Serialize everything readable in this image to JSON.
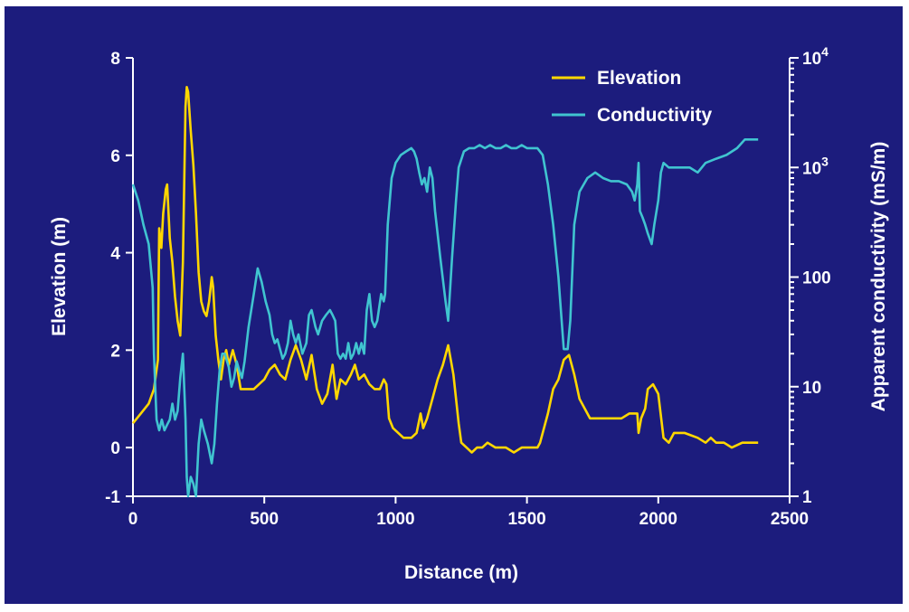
{
  "chart_data": {
    "type": "line",
    "background": "#1c1c7d",
    "xlabel": "Distance (m)",
    "ylabel_left": "Elevation (m)",
    "ylabel_right": "Apparent conductivity (mS/m)",
    "xlim": [
      0,
      2500
    ],
    "ylim_left": [
      -1,
      8
    ],
    "ylim_right": [
      1,
      10000
    ],
    "y_right_scale": "log",
    "x_ticks": [
      "0",
      "500",
      "1000",
      "1500",
      "2000",
      "2500"
    ],
    "y_left_ticks": [
      "-1",
      "0",
      "2",
      "4",
      "6",
      "8"
    ],
    "y_right_ticks": [
      {
        "base": "1",
        "exp": ""
      },
      {
        "base": "10",
        "exp": ""
      },
      {
        "base": "100",
        "exp": ""
      },
      {
        "base": "10",
        "exp": "3"
      },
      {
        "base": "10",
        "exp": "4"
      }
    ],
    "legend_position": "top-right",
    "grid": false,
    "series": [
      {
        "name": "Elevation",
        "axis": "left",
        "color": "#ffd700",
        "points": [
          [
            0,
            0.5
          ],
          [
            30,
            0.7
          ],
          [
            60,
            0.9
          ],
          [
            80,
            1.2
          ],
          [
            95,
            1.8
          ],
          [
            100,
            4.5
          ],
          [
            108,
            4.1
          ],
          [
            115,
            4.8
          ],
          [
            125,
            5.3
          ],
          [
            130,
            5.4
          ],
          [
            140,
            4.3
          ],
          [
            150,
            3.8
          ],
          [
            160,
            3.1
          ],
          [
            170,
            2.6
          ],
          [
            180,
            2.3
          ],
          [
            190,
            3.8
          ],
          [
            200,
            7.0
          ],
          [
            205,
            7.4
          ],
          [
            210,
            7.3
          ],
          [
            220,
            6.5
          ],
          [
            230,
            5.8
          ],
          [
            240,
            4.8
          ],
          [
            250,
            3.6
          ],
          [
            260,
            3.0
          ],
          [
            270,
            2.8
          ],
          [
            280,
            2.7
          ],
          [
            290,
            3.0
          ],
          [
            300,
            3.5
          ],
          [
            305,
            3.3
          ],
          [
            315,
            2.3
          ],
          [
            325,
            1.8
          ],
          [
            335,
            1.4
          ],
          [
            345,
            1.8
          ],
          [
            355,
            2.0
          ],
          [
            365,
            1.7
          ],
          [
            380,
            2.0
          ],
          [
            395,
            1.7
          ],
          [
            410,
            1.2
          ],
          [
            440,
            1.2
          ],
          [
            460,
            1.2
          ],
          [
            480,
            1.3
          ],
          [
            500,
            1.4
          ],
          [
            520,
            1.6
          ],
          [
            540,
            1.7
          ],
          [
            560,
            1.5
          ],
          [
            580,
            1.4
          ],
          [
            600,
            1.8
          ],
          [
            620,
            2.1
          ],
          [
            640,
            1.8
          ],
          [
            660,
            1.4
          ],
          [
            680,
            1.9
          ],
          [
            700,
            1.2
          ],
          [
            720,
            0.9
          ],
          [
            740,
            1.1
          ],
          [
            760,
            1.7
          ],
          [
            775,
            1.0
          ],
          [
            790,
            1.4
          ],
          [
            810,
            1.3
          ],
          [
            830,
            1.5
          ],
          [
            845,
            1.7
          ],
          [
            860,
            1.4
          ],
          [
            880,
            1.5
          ],
          [
            900,
            1.3
          ],
          [
            920,
            1.2
          ],
          [
            940,
            1.2
          ],
          [
            955,
            1.4
          ],
          [
            965,
            1.3
          ],
          [
            975,
            0.6
          ],
          [
            990,
            0.4
          ],
          [
            1010,
            0.3
          ],
          [
            1030,
            0.2
          ],
          [
            1060,
            0.2
          ],
          [
            1080,
            0.3
          ],
          [
            1095,
            0.7
          ],
          [
            1105,
            0.4
          ],
          [
            1120,
            0.6
          ],
          [
            1140,
            1.0
          ],
          [
            1160,
            1.4
          ],
          [
            1180,
            1.7
          ],
          [
            1200,
            2.1
          ],
          [
            1220,
            1.5
          ],
          [
            1240,
            0.5
          ],
          [
            1250,
            0.1
          ],
          [
            1270,
            0.0
          ],
          [
            1290,
            -0.1
          ],
          [
            1310,
            0.0
          ],
          [
            1330,
            0.0
          ],
          [
            1350,
            0.1
          ],
          [
            1380,
            0.0
          ],
          [
            1420,
            0.0
          ],
          [
            1450,
            -0.1
          ],
          [
            1480,
            0.0
          ],
          [
            1520,
            0.0
          ],
          [
            1540,
            0.0
          ],
          [
            1550,
            0.1
          ],
          [
            1580,
            0.7
          ],
          [
            1600,
            1.2
          ],
          [
            1620,
            1.4
          ],
          [
            1640,
            1.8
          ],
          [
            1660,
            1.9
          ],
          [
            1680,
            1.5
          ],
          [
            1700,
            1.0
          ],
          [
            1720,
            0.8
          ],
          [
            1740,
            0.6
          ],
          [
            1780,
            0.6
          ],
          [
            1820,
            0.6
          ],
          [
            1860,
            0.6
          ],
          [
            1890,
            0.7
          ],
          [
            1910,
            0.7
          ],
          [
            1920,
            0.7
          ],
          [
            1925,
            0.3
          ],
          [
            1935,
            0.6
          ],
          [
            1950,
            0.8
          ],
          [
            1960,
            1.2
          ],
          [
            1980,
            1.3
          ],
          [
            2000,
            1.1
          ],
          [
            2020,
            0.2
          ],
          [
            2040,
            0.1
          ],
          [
            2060,
            0.3
          ],
          [
            2100,
            0.3
          ],
          [
            2150,
            0.2
          ],
          [
            2180,
            0.1
          ],
          [
            2200,
            0.2
          ],
          [
            2220,
            0.1
          ],
          [
            2250,
            0.1
          ],
          [
            2280,
            0.0
          ],
          [
            2320,
            0.1
          ],
          [
            2380,
            0.1
          ]
        ]
      },
      {
        "name": "Conductivity",
        "axis": "right",
        "color": "#40c4d0",
        "points": [
          [
            0,
            700
          ],
          [
            20,
            500
          ],
          [
            40,
            300
          ],
          [
            60,
            200
          ],
          [
            75,
            80
          ],
          [
            80,
            20
          ],
          [
            90,
            5
          ],
          [
            100,
            4
          ],
          [
            110,
            5
          ],
          [
            120,
            4
          ],
          [
            130,
            4.5
          ],
          [
            140,
            5
          ],
          [
            150,
            7
          ],
          [
            160,
            5
          ],
          [
            170,
            6
          ],
          [
            180,
            12
          ],
          [
            190,
            20
          ],
          [
            200,
            5
          ],
          [
            205,
            1.5
          ],
          [
            210,
            1.0
          ],
          [
            220,
            1.5
          ],
          [
            230,
            1.3
          ],
          [
            240,
            1.0
          ],
          [
            250,
            3
          ],
          [
            260,
            5
          ],
          [
            270,
            4
          ],
          [
            285,
            3
          ],
          [
            300,
            2
          ],
          [
            310,
            3
          ],
          [
            320,
            7
          ],
          [
            330,
            14
          ],
          [
            340,
            20
          ],
          [
            350,
            20
          ],
          [
            365,
            15
          ],
          [
            375,
            10
          ],
          [
            385,
            12
          ],
          [
            395,
            17
          ],
          [
            405,
            14
          ],
          [
            415,
            12
          ],
          [
            425,
            17
          ],
          [
            440,
            35
          ],
          [
            460,
            70
          ],
          [
            475,
            120
          ],
          [
            490,
            90
          ],
          [
            505,
            60
          ],
          [
            520,
            45
          ],
          [
            530,
            30
          ],
          [
            540,
            25
          ],
          [
            550,
            27
          ],
          [
            560,
            22
          ],
          [
            570,
            18
          ],
          [
            580,
            20
          ],
          [
            590,
            25
          ],
          [
            600,
            40
          ],
          [
            610,
            30
          ],
          [
            620,
            25
          ],
          [
            630,
            30
          ],
          [
            645,
            20
          ],
          [
            660,
            25
          ],
          [
            670,
            45
          ],
          [
            680,
            50
          ],
          [
            695,
            35
          ],
          [
            705,
            30
          ],
          [
            720,
            40
          ],
          [
            735,
            45
          ],
          [
            750,
            50
          ],
          [
            760,
            45
          ],
          [
            770,
            40
          ],
          [
            780,
            20
          ],
          [
            790,
            18
          ],
          [
            800,
            20
          ],
          [
            810,
            18
          ],
          [
            820,
            25
          ],
          [
            830,
            18
          ],
          [
            840,
            20
          ],
          [
            850,
            25
          ],
          [
            860,
            20
          ],
          [
            870,
            25
          ],
          [
            880,
            20
          ],
          [
            890,
            50
          ],
          [
            900,
            70
          ],
          [
            910,
            40
          ],
          [
            920,
            35
          ],
          [
            930,
            40
          ],
          [
            945,
            70
          ],
          [
            955,
            60
          ],
          [
            960,
            70
          ],
          [
            970,
            300
          ],
          [
            985,
            800
          ],
          [
            1000,
            1100
          ],
          [
            1020,
            1300
          ],
          [
            1040,
            1400
          ],
          [
            1060,
            1500
          ],
          [
            1070,
            1400
          ],
          [
            1080,
            1200
          ],
          [
            1090,
            900
          ],
          [
            1100,
            700
          ],
          [
            1110,
            800
          ],
          [
            1120,
            600
          ],
          [
            1130,
            1000
          ],
          [
            1140,
            800
          ],
          [
            1150,
            400
          ],
          [
            1170,
            150
          ],
          [
            1190,
            60
          ],
          [
            1200,
            40
          ],
          [
            1215,
            150
          ],
          [
            1230,
            500
          ],
          [
            1240,
            1000
          ],
          [
            1260,
            1400
          ],
          [
            1280,
            1500
          ],
          [
            1300,
            1500
          ],
          [
            1320,
            1600
          ],
          [
            1340,
            1500
          ],
          [
            1360,
            1600
          ],
          [
            1380,
            1500
          ],
          [
            1400,
            1500
          ],
          [
            1420,
            1600
          ],
          [
            1440,
            1500
          ],
          [
            1460,
            1500
          ],
          [
            1480,
            1600
          ],
          [
            1500,
            1500
          ],
          [
            1520,
            1500
          ],
          [
            1540,
            1500
          ],
          [
            1560,
            1300
          ],
          [
            1580,
            700
          ],
          [
            1600,
            300
          ],
          [
            1620,
            100
          ],
          [
            1640,
            22
          ],
          [
            1655,
            22
          ],
          [
            1665,
            40
          ],
          [
            1680,
            300
          ],
          [
            1700,
            600
          ],
          [
            1730,
            800
          ],
          [
            1760,
            900
          ],
          [
            1790,
            800
          ],
          [
            1820,
            750
          ],
          [
            1850,
            750
          ],
          [
            1880,
            700
          ],
          [
            1900,
            600
          ],
          [
            1910,
            500
          ],
          [
            1920,
            700
          ],
          [
            1925,
            1100
          ],
          [
            1930,
            400
          ],
          [
            1940,
            350
          ],
          [
            1950,
            300
          ],
          [
            1960,
            250
          ],
          [
            1975,
            200
          ],
          [
            1985,
            300
          ],
          [
            2000,
            500
          ],
          [
            2010,
            900
          ],
          [
            2020,
            1100
          ],
          [
            2040,
            1000
          ],
          [
            2080,
            1000
          ],
          [
            2120,
            1000
          ],
          [
            2150,
            900
          ],
          [
            2180,
            1100
          ],
          [
            2220,
            1200
          ],
          [
            2260,
            1300
          ],
          [
            2300,
            1500
          ],
          [
            2330,
            1800
          ],
          [
            2360,
            1800
          ],
          [
            2380,
            1800
          ]
        ]
      }
    ]
  }
}
